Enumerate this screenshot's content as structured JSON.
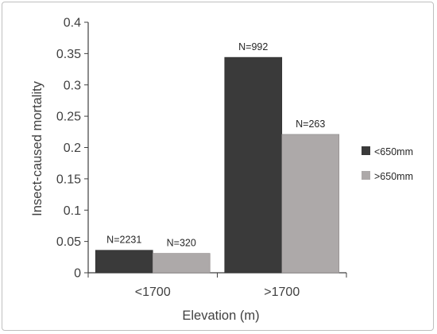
{
  "chart_data": {
    "type": "bar",
    "categories": [
      "<1700",
      ">1700"
    ],
    "series": [
      {
        "name": "<650mm",
        "values": [
          0.036,
          0.344
        ],
        "labels": [
          "N=2231",
          "N=992"
        ]
      },
      {
        "name": ">650mm",
        "values": [
          0.031,
          0.221
        ],
        "labels": [
          "N=320",
          "N=263"
        ]
      }
    ],
    "xlabel": "Elevation (m)",
    "ylabel": "Insect-caused mortality",
    "ylim": [
      0,
      0.4
    ],
    "yticks": [
      "0",
      "0.05",
      "0.1",
      "0.15",
      "0.2",
      "0.25",
      "0.3",
      "0.35",
      "0.4"
    ],
    "legend_position": "right",
    "grid": false,
    "colors": {
      "series_0": "#3a3a3a",
      "series_1": "#ada9a9",
      "axis": "#404040"
    }
  }
}
